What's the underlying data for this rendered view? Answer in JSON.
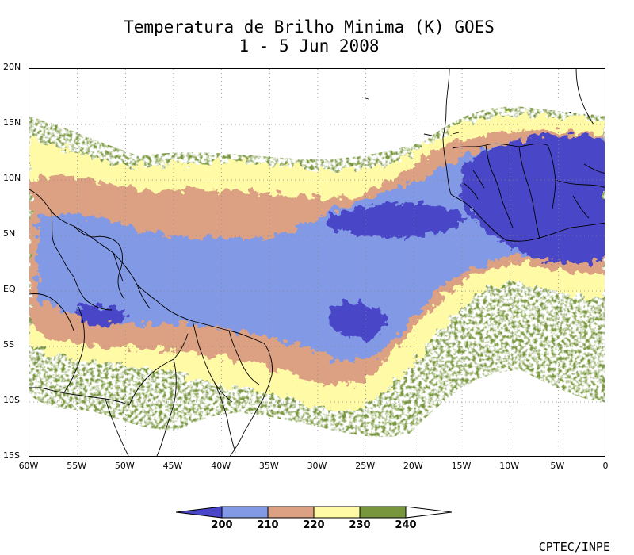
{
  "title": {
    "line1": "Temperatura de Brilho Minima (K) GOES",
    "line2": "1 - 5 Jun 2008"
  },
  "axes": {
    "lat_labels": [
      "20N",
      "15N",
      "10N",
      "5N",
      "EQ",
      "5S",
      "10S",
      "15S"
    ],
    "lat_values": [
      20,
      15,
      10,
      5,
      0,
      -5,
      -10,
      -15
    ],
    "lon_labels": [
      "60W",
      "55W",
      "50W",
      "45W",
      "40W",
      "35W",
      "30W",
      "25W",
      "20W",
      "15W",
      "10W",
      "5W",
      "0"
    ],
    "lon_values": [
      -60,
      -55,
      -50,
      -45,
      -40,
      -35,
      -30,
      -25,
      -20,
      -15,
      -10,
      -5,
      0
    ],
    "lon_range": [
      -60,
      0
    ],
    "lat_range": [
      -15,
      20
    ],
    "grid": "dotted"
  },
  "colorbar": {
    "levels": [
      "200",
      "210",
      "220",
      "230",
      "240"
    ],
    "colors": [
      "#4a46c8",
      "#8299e6",
      "#dca082",
      "#fffaa6",
      "#78963c"
    ]
  },
  "credit": "CPTEC/INPE",
  "map_colors": {
    "below_200": "#4a46c8",
    "200_210": "#8299e6",
    "210_220": "#dca082",
    "220_230": "#fffaa6",
    "230_240": "#78963c",
    "coastline": "#000000"
  }
}
